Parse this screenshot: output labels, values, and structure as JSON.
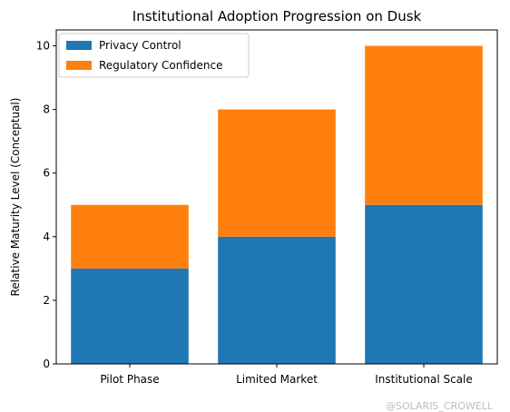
{
  "chart_data": {
    "type": "bar",
    "stacked": true,
    "title": "Institutional Adoption Progression on Dusk",
    "xlabel": "",
    "ylabel": "Relative Maturity Level (Conceptual)",
    "categories": [
      "Pilot Phase",
      "Limited Market",
      "Institutional Scale"
    ],
    "series": [
      {
        "name": "Privacy Control",
        "values": [
          3,
          4,
          5
        ],
        "color": "#1f77b4"
      },
      {
        "name": "Regulatory Confidence",
        "values": [
          2,
          4,
          5
        ],
        "color": "#ff7f0e"
      }
    ],
    "ylim": [
      0,
      10.5
    ],
    "yticks": [
      0,
      2,
      4,
      6,
      8,
      10
    ],
    "grid": false,
    "legend_position": "top-left"
  },
  "watermark": "@SOLARIS_CROWELL"
}
